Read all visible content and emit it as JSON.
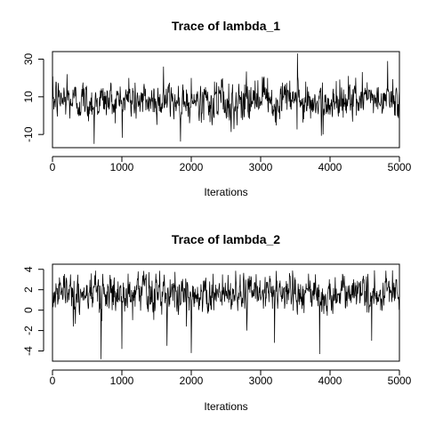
{
  "chart_data": [
    {
      "type": "line",
      "title": "Trace of lambda_1",
      "xlabel": "Iterations",
      "ylabel": "",
      "xlim": [
        0,
        5000
      ],
      "ylim": [
        -17,
        34
      ],
      "xticks": [
        0,
        1000,
        2000,
        3000,
        4000,
        5000
      ],
      "yticks": [
        -10,
        10,
        30
      ],
      "grid": false,
      "series": [
        {
          "mean": 8,
          "sd": 5,
          "x": [
            0,
            50,
            120,
            210,
            430,
            520,
            600,
            1100,
            1300,
            1600,
            2000,
            2600,
            3100,
            3530,
            3900,
            4500,
            4830,
            5000
          ],
          "y": [
            7,
            18,
            12,
            22,
            10,
            -3,
            -15,
            20,
            2,
            26,
            20,
            8,
            20,
            33,
            -10,
            12,
            29,
            14
          ]
        }
      ]
    },
    {
      "type": "line",
      "title": "Trace of lambda_2",
      "xlabel": "Iterations",
      "ylabel": "",
      "xlim": [
        0,
        5000
      ],
      "ylim": [
        -5,
        4.5
      ],
      "xticks": [
        0,
        1000,
        2000,
        3000,
        4000,
        5000
      ],
      "yticks": [
        -4,
        -2,
        0,
        2,
        4
      ],
      "grid": false,
      "series": [
        {
          "mean": 1.6,
          "sd": 0.9,
          "x": [
            0,
            100,
            300,
            560,
            700,
            720,
            1000,
            1300,
            1650,
            2000,
            2450,
            2800,
            3200,
            3500,
            3850,
            4200,
            4600,
            4900,
            5000
          ],
          "y": [
            1.5,
            3.2,
            -1.6,
            3.6,
            -4.8,
            2.4,
            -3.8,
            3.4,
            -3.5,
            -4.2,
            3.5,
            -2.0,
            -3.2,
            3.0,
            -4.3,
            2.8,
            -3.0,
            3.9,
            0.8
          ]
        }
      ]
    }
  ]
}
